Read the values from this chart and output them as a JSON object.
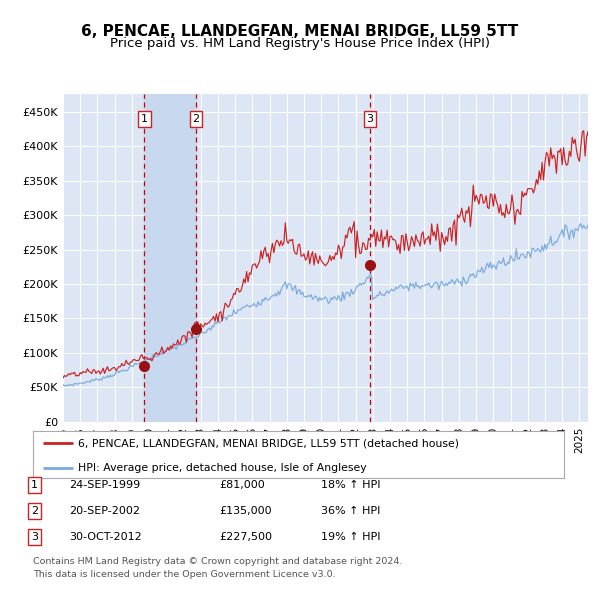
{
  "title": "6, PENCAE, LLANDEGFAN, MENAI BRIDGE, LL59 5TT",
  "subtitle": "Price paid vs. HM Land Registry's House Price Index (HPI)",
  "title_fontsize": 11,
  "subtitle_fontsize": 9.5,
  "ylim": [
    0,
    475000
  ],
  "yticks": [
    0,
    50000,
    100000,
    150000,
    200000,
    250000,
    300000,
    350000,
    400000,
    450000
  ],
  "ytick_labels": [
    "£0",
    "£50K",
    "£100K",
    "£150K",
    "£200K",
    "£250K",
    "£300K",
    "£350K",
    "£400K",
    "£450K"
  ],
  "xlim_start": 1995.0,
  "xlim_end": 2025.5,
  "xtick_years": [
    1995,
    1996,
    1997,
    1998,
    1999,
    2000,
    2001,
    2002,
    2003,
    2004,
    2005,
    2006,
    2007,
    2008,
    2009,
    2010,
    2011,
    2012,
    2013,
    2014,
    2015,
    2016,
    2017,
    2018,
    2019,
    2020,
    2021,
    2022,
    2023,
    2024,
    2025
  ],
  "background_color": "#ffffff",
  "plot_bg_color": "#dce6f5",
  "grid_color": "#ffffff",
  "red_line_color": "#cc2222",
  "blue_line_color": "#7aaadd",
  "sale_marker_color": "#991111",
  "vline_color": "#cc0000",
  "shade_color": "#c8d8ef",
  "sale1_x": 1999.73,
  "sale1_y": 81000,
  "sale2_x": 2002.72,
  "sale2_y": 135000,
  "sale3_x": 2012.83,
  "sale3_y": 227500,
  "transactions": [
    {
      "num": 1,
      "date": "24-SEP-1999",
      "price": "£81,000",
      "change": "18% ↑ HPI"
    },
    {
      "num": 2,
      "date": "20-SEP-2002",
      "price": "£135,000",
      "change": "36% ↑ HPI"
    },
    {
      "num": 3,
      "date": "30-OCT-2012",
      "price": "£227,500",
      "change": "19% ↑ HPI"
    }
  ],
  "legend_line1": "6, PENCAE, LLANDEGFAN, MENAI BRIDGE, LL59 5TT (detached house)",
  "legend_line2": "HPI: Average price, detached house, Isle of Anglesey",
  "footer1": "Contains HM Land Registry data © Crown copyright and database right 2024.",
  "footer2": "This data is licensed under the Open Government Licence v3.0."
}
